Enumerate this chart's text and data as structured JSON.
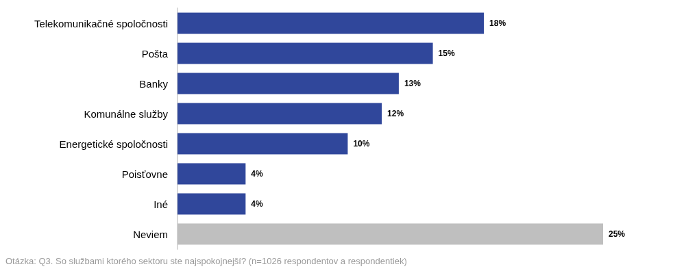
{
  "chart_data": {
    "type": "bar",
    "orientation": "horizontal",
    "categories": [
      "Telekomunikačné spoločnosti",
      "Pošta",
      "Banky",
      "Komunálne služby",
      "Energetické spoločnosti",
      "Poisťovne",
      "Iné",
      "Neviem"
    ],
    "values": [
      18,
      15,
      13,
      12,
      10,
      4,
      4,
      25
    ],
    "value_labels": [
      "18%",
      "15%",
      "13%",
      "12%",
      "10%",
      "4%",
      "4%",
      "25%"
    ],
    "colors": [
      "#30479b",
      "#30479b",
      "#30479b",
      "#30479b",
      "#30479b",
      "#30479b",
      "#30479b",
      "#bfbfbf"
    ],
    "annotations": [
      "Otázka: Q3. So službami ktorého sektoru ste najspokojnejší? (n=1026 respondentov a respondentiek)"
    ]
  }
}
